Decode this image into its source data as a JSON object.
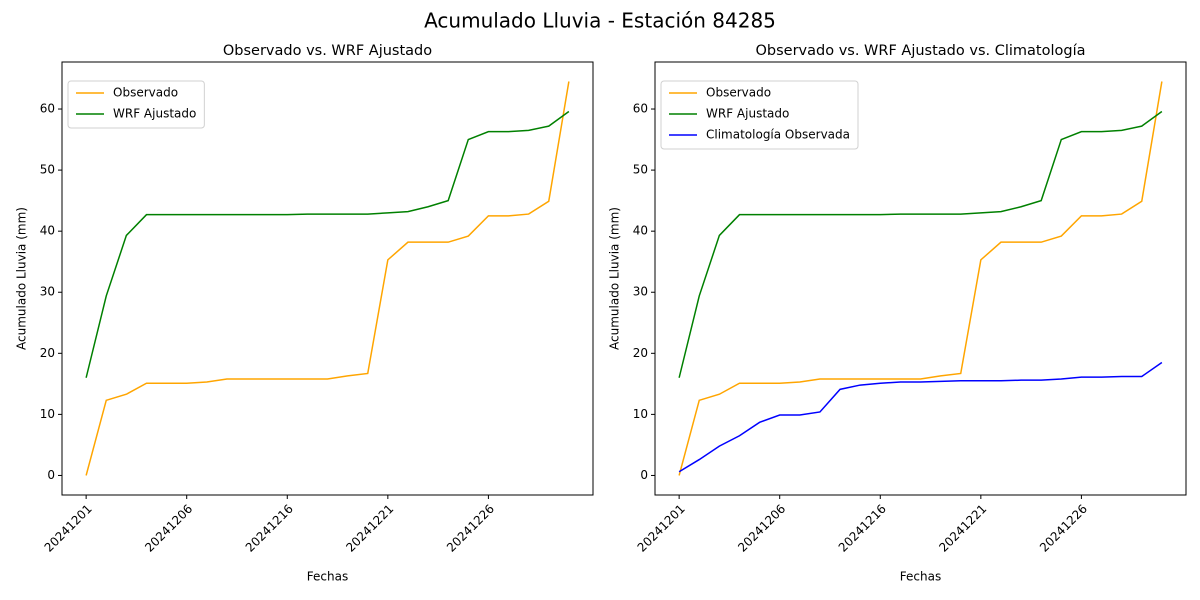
{
  "title": "Acumulado Lluvia - Estación 84285",
  "chart_data": [
    {
      "type": "line",
      "title": "Observado vs. WRF Ajustado",
      "xlabel": "Fechas",
      "ylabel": "Acumulado Lluvia (mm)",
      "categories": [
        "20241201",
        null,
        null,
        null,
        null,
        "20241206",
        null,
        null,
        null,
        null,
        "20241216",
        null,
        null,
        null,
        null,
        "20241221",
        null,
        null,
        null,
        null,
        "20241226",
        null,
        null,
        null,
        null
      ],
      "series": [
        {
          "name": "Observado",
          "color": "orange",
          "values": [
            0,
            12.3,
            13.3,
            15.1,
            15.1,
            15.1,
            15.3,
            15.8,
            15.8,
            15.8,
            15.8,
            15.8,
            15.8,
            16.3,
            16.7,
            35.3,
            38.2,
            38.2,
            38.2,
            39.2,
            42.5,
            42.5,
            42.8,
            44.9,
            64.5
          ]
        },
        {
          "name": "WRF Ajustado",
          "color": "green",
          "values": [
            16.0,
            29.4,
            39.3,
            42.7,
            42.7,
            42.7,
            42.7,
            42.7,
            42.7,
            42.7,
            42.7,
            42.8,
            42.8,
            42.8,
            42.8,
            43.0,
            43.2,
            44.0,
            45.0,
            55.0,
            56.3,
            56.3,
            56.5,
            57.2,
            59.6
          ]
        }
      ],
      "ylim": [
        -3.2,
        67.7
      ],
      "yticks": [
        0,
        10,
        20,
        30,
        40,
        50,
        60
      ],
      "legend": "upper left"
    },
    {
      "type": "line",
      "title": "Observado vs. WRF Ajustado vs. Climatología",
      "xlabel": "Fechas",
      "ylabel": "Acumulado Lluvia (mm)",
      "categories": [
        "20241201",
        null,
        null,
        null,
        null,
        "20241206",
        null,
        null,
        null,
        null,
        "20241216",
        null,
        null,
        null,
        null,
        "20241221",
        null,
        null,
        null,
        null,
        "20241226",
        null,
        null,
        null,
        null
      ],
      "series": [
        {
          "name": "Observado",
          "color": "orange",
          "values": [
            0,
            12.3,
            13.3,
            15.1,
            15.1,
            15.1,
            15.3,
            15.8,
            15.8,
            15.8,
            15.8,
            15.8,
            15.8,
            16.3,
            16.7,
            35.3,
            38.2,
            38.2,
            38.2,
            39.2,
            42.5,
            42.5,
            42.8,
            44.9,
            64.5
          ]
        },
        {
          "name": "WRF Ajustado",
          "color": "green",
          "values": [
            16.0,
            29.4,
            39.3,
            42.7,
            42.7,
            42.7,
            42.7,
            42.7,
            42.7,
            42.7,
            42.7,
            42.8,
            42.8,
            42.8,
            42.8,
            43.0,
            43.2,
            44.0,
            45.0,
            55.0,
            56.3,
            56.3,
            56.5,
            57.2,
            59.6
          ]
        },
        {
          "name": "Climatología Observada",
          "color": "blue",
          "values": [
            0.6,
            2.6,
            4.8,
            6.5,
            8.7,
            9.9,
            9.9,
            10.4,
            14.1,
            14.8,
            15.1,
            15.3,
            15.3,
            15.4,
            15.5,
            15.5,
            15.5,
            15.6,
            15.6,
            15.8,
            16.1,
            16.1,
            16.2,
            16.2,
            18.5
          ]
        }
      ],
      "ylim": [
        -3.2,
        67.7
      ],
      "yticks": [
        0,
        10,
        20,
        30,
        40,
        50,
        60
      ],
      "legend": "upper left"
    }
  ]
}
